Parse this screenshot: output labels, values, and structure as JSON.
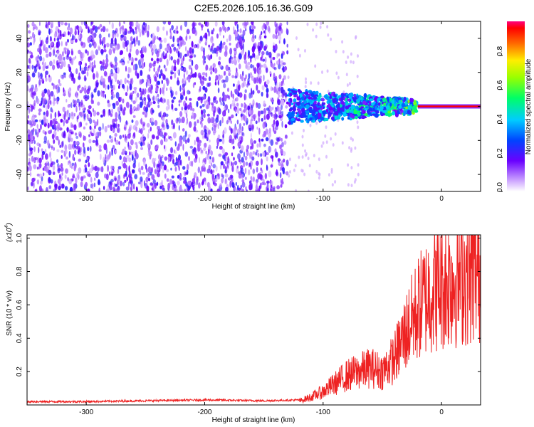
{
  "title": "C2E5.2026.105.16.36.G09",
  "colors": {
    "snr_line": "#ee2222",
    "spectrogram_noise": "#7b2fff",
    "spectrogram_peak": "#ff2020"
  },
  "chart_data": [
    {
      "type": "heatmap",
      "xlabel": "Height of straight line (km)",
      "ylabel": "Frequency (Hz)",
      "xlim": [
        -350,
        33
      ],
      "ylim": [
        -50,
        50
      ],
      "xticks": [
        -300,
        -200,
        -100,
        0
      ],
      "xtick_labels": [
        "-300",
        "-200",
        "-100",
        "0"
      ],
      "yticks": [
        -40,
        -20,
        0,
        20,
        40
      ],
      "ytick_labels": [
        "-40",
        "-20",
        "0",
        "20",
        "40"
      ],
      "colorbar": {
        "label": "Normalized spectral amplitude",
        "range": [
          0,
          1
        ],
        "ticks": [
          0,
          0.2,
          0.4,
          0.6,
          0.8
        ],
        "tick_labels": [
          "0.0",
          "0.2",
          "0.4",
          "0.6",
          "0.8"
        ],
        "colormap": "rainbow"
      },
      "regions": [
        {
          "name": "noise",
          "x": [
            -350,
            -130
          ],
          "freq_range": [
            -50,
            50
          ],
          "amplitude_range": [
            0.05,
            0.25
          ]
        },
        {
          "name": "signal-band",
          "x": [
            -130,
            -20
          ],
          "freq_range": [
            -10,
            10
          ],
          "amplitude_range": [
            0.15,
            0.55
          ]
        },
        {
          "name": "carrier",
          "x": [
            -20,
            33
          ],
          "frequency": 0,
          "amplitude": 1.0
        }
      ],
      "grid": false
    },
    {
      "type": "line",
      "xlabel": "Height of straight line (km)",
      "ylabel": "SNR (10 * v/v)",
      "y_multiplier": "(x10",
      "y_multiplier_exp": "4",
      "y_multiplier_close": ")",
      "xlim": [
        -350,
        33
      ],
      "ylim": [
        0,
        1.02
      ],
      "xticks": [
        -300,
        -200,
        -100,
        0
      ],
      "xtick_labels": [
        "-300",
        "-200",
        "-100",
        "0"
      ],
      "yticks": [
        0.2,
        0.4,
        0.6,
        0.8,
        1.0
      ],
      "ytick_labels": [
        "0.2",
        "0.4",
        "0.6",
        "0.8",
        "1.0"
      ],
      "series": [
        {
          "x": [
            -350,
            -300,
            -250,
            -200,
            -150,
            -120,
            -110,
            -100,
            -90,
            -80,
            -70,
            -60,
            -50,
            -40,
            -30,
            -20,
            -10,
            0,
            10,
            20,
            30
          ],
          "y": [
            0.02,
            0.02,
            0.025,
            0.03,
            0.025,
            0.03,
            0.06,
            0.1,
            0.16,
            0.22,
            0.25,
            0.28,
            0.25,
            0.35,
            0.55,
            0.72,
            0.85,
            0.9,
            0.94,
            0.98,
            1.0
          ]
        }
      ],
      "grid": false
    }
  ]
}
